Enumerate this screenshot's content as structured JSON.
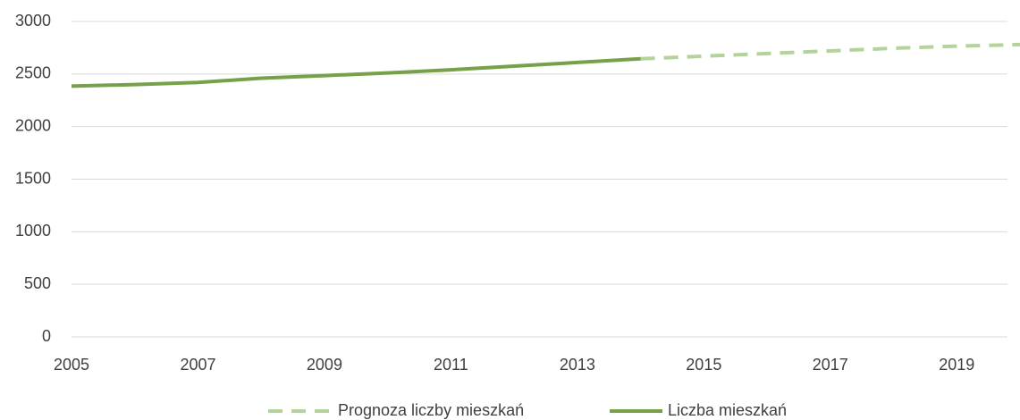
{
  "chart_data": {
    "type": "line",
    "x": [
      2005,
      2006,
      2007,
      2008,
      2009,
      2010,
      2011,
      2012,
      2013,
      2014,
      2015,
      2016,
      2017,
      2018,
      2019,
      2020
    ],
    "series": [
      {
        "name": "Prognoza liczby mieszkań",
        "color": "#b4d39a",
        "style": "dashed",
        "values": [
          null,
          null,
          null,
          null,
          null,
          null,
          null,
          null,
          null,
          2645,
          2670,
          2695,
          2720,
          2745,
          2765,
          2780
        ]
      },
      {
        "name": "Liczba mieszkań",
        "color": "#77a04a",
        "style": "solid",
        "values": [
          2385,
          2400,
          2420,
          2460,
          2485,
          2510,
          2540,
          2575,
          2610,
          2645,
          null,
          null,
          null,
          null,
          null,
          null
        ]
      }
    ],
    "xlim": [
      2005,
      2020
    ],
    "xticks": [
      2005,
      2007,
      2009,
      2011,
      2013,
      2015,
      2017,
      2019
    ],
    "ylim": [
      0,
      3000
    ],
    "yticks": [
      0,
      500,
      1000,
      1500,
      2000,
      2500,
      3000
    ],
    "grid": true,
    "legend": "bottom"
  }
}
